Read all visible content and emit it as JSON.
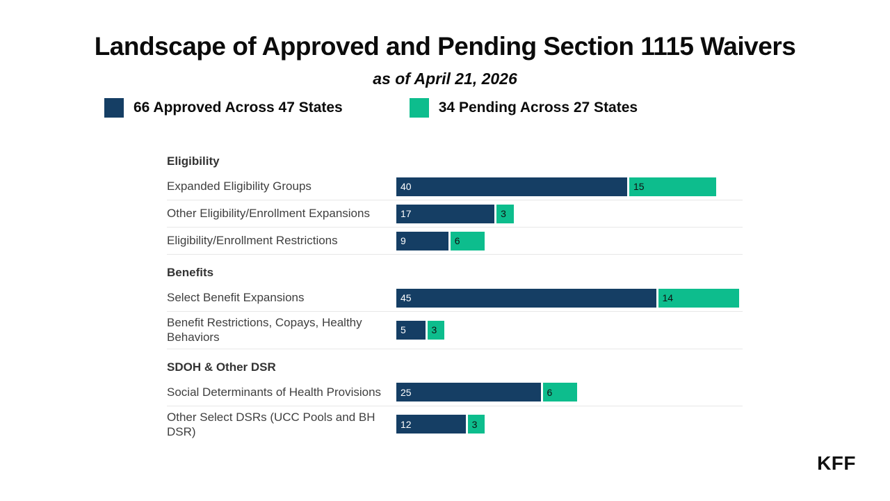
{
  "header": {
    "title": "Landscape of Approved and Pending Section 1115 Waivers",
    "subtitle": "as of April 21, 2026"
  },
  "legend": [
    {
      "label": "66 Approved Across 47 States",
      "color": "#153e64"
    },
    {
      "label": "34 Pending Across 27 States",
      "color": "#0dbd8d"
    }
  ],
  "chart_data": {
    "type": "bar",
    "orientation": "horizontal",
    "stacked": true,
    "xmax": 60,
    "grid": false,
    "series": [
      {
        "name": "Approved",
        "color": "#153e64"
      },
      {
        "name": "Pending",
        "color": "#0dbd8d"
      }
    ],
    "groups": [
      {
        "section": "Eligibility",
        "rows": [
          {
            "label": "Expanded Eligibility Groups",
            "approved": 40,
            "pending": 15
          },
          {
            "label": "Other Eligibility/Enrollment Expansions",
            "approved": 17,
            "pending": 3
          },
          {
            "label": "Eligibility/Enrollment Restrictions",
            "approved": 9,
            "pending": 6
          }
        ]
      },
      {
        "section": "Benefits",
        "rows": [
          {
            "label": "Select Benefit Expansions",
            "approved": 45,
            "pending": 14
          },
          {
            "label": "Benefit Restrictions, Copays, Healthy Behaviors",
            "approved": 5,
            "pending": 3
          }
        ]
      },
      {
        "section": "SDOH & Other DSR",
        "rows": [
          {
            "label": "Social Determinants of Health Provisions",
            "approved": 25,
            "pending": 6
          },
          {
            "label": "Other Select DSRs (UCC Pools and BH DSR)",
            "approved": 12,
            "pending": 3
          }
        ]
      }
    ]
  },
  "footer": {
    "logo_text": "KFF"
  }
}
